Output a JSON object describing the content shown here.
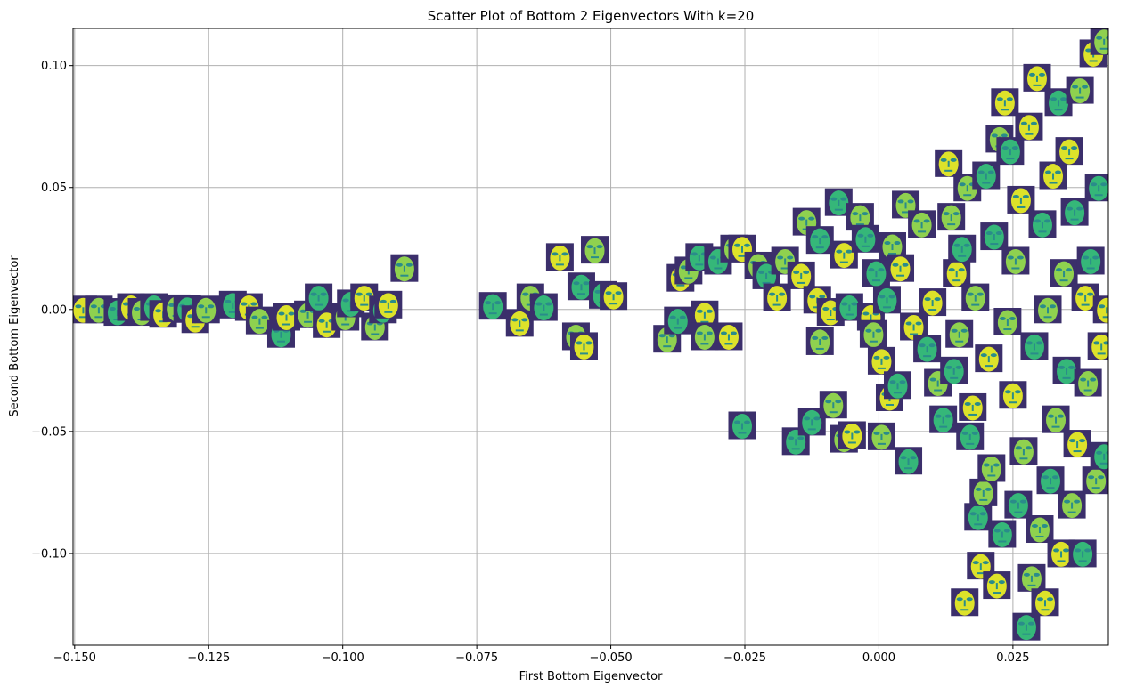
{
  "chart_data": {
    "type": "scatter",
    "title": "Scatter Plot of Bottom 2 Eigenvectors With k=20",
    "xlabel": "First Bottom Eigenvector",
    "ylabel": "Second Bottom Eigenvector",
    "xlim": [
      -0.1503,
      0.0428
    ],
    "ylim": [
      -0.1376,
      0.1152
    ],
    "xticks": [
      -0.15,
      -0.125,
      -0.1,
      -0.075,
      -0.05,
      -0.025,
      0.0,
      0.025
    ],
    "xtick_labels": [
      "−0.150",
      "−0.125",
      "−0.100",
      "−0.075",
      "−0.050",
      "−0.025",
      "0.000",
      "0.025"
    ],
    "yticks": [
      0.1,
      0.05,
      0.0,
      -0.05,
      -0.1
    ],
    "ytick_labels": [
      "0.10",
      "0.05",
      "0.00",
      "−0.05",
      "−0.10"
    ],
    "grid": true,
    "marker": "face-thumbnail",
    "colors": {
      "grid": "#b0b0b0",
      "axes": "#000000",
      "face_low": "#3b2f6b",
      "face_mid": "#2a8c8a",
      "face_high": "#dde22a"
    },
    "points": [
      {
        "x": -0.1484,
        "y": 0.0
      },
      {
        "x": -0.1455,
        "y": 0.0
      },
      {
        "x": -0.142,
        "y": -0.001
      },
      {
        "x": -0.1395,
        "y": 0.001
      },
      {
        "x": -0.1375,
        "y": -0.001
      },
      {
        "x": -0.1352,
        "y": 0.001
      },
      {
        "x": -0.1335,
        "y": -0.0018
      },
      {
        "x": -0.131,
        "y": 0.0005
      },
      {
        "x": -0.129,
        "y": 0.0002
      },
      {
        "x": -0.1275,
        "y": -0.004
      },
      {
        "x": -0.1255,
        "y": 0.0
      },
      {
        "x": -0.1205,
        "y": 0.002
      },
      {
        "x": -0.1175,
        "y": 0.001
      },
      {
        "x": -0.1155,
        "y": -0.0045
      },
      {
        "x": -0.1115,
        "y": -0.01
      },
      {
        "x": -0.1105,
        "y": -0.003
      },
      {
        "x": -0.1065,
        "y": -0.002
      },
      {
        "x": -0.1045,
        "y": 0.005
      },
      {
        "x": -0.103,
        "y": -0.006
      },
      {
        "x": -0.0995,
        "y": -0.003
      },
      {
        "x": -0.0985,
        "y": 0.0025
      },
      {
        "x": -0.096,
        "y": 0.005
      },
      {
        "x": -0.094,
        "y": -0.007
      },
      {
        "x": -0.0925,
        "y": 0.0
      },
      {
        "x": -0.0915,
        "y": 0.002
      },
      {
        "x": -0.0885,
        "y": 0.017
      },
      {
        "x": -0.072,
        "y": 0.0015
      },
      {
        "x": -0.067,
        "y": -0.0055
      },
      {
        "x": -0.065,
        "y": 0.005
      },
      {
        "x": -0.0625,
        "y": 0.001
      },
      {
        "x": -0.0595,
        "y": 0.0215
      },
      {
        "x": -0.0565,
        "y": -0.011
      },
      {
        "x": -0.0555,
        "y": 0.0095
      },
      {
        "x": -0.055,
        "y": -0.015
      },
      {
        "x": -0.053,
        "y": 0.0245
      },
      {
        "x": -0.0515,
        "y": 0.006
      },
      {
        "x": -0.0495,
        "y": 0.0055
      },
      {
        "x": -0.0395,
        "y": -0.012
      },
      {
        "x": -0.0375,
        "y": -0.0045
      },
      {
        "x": -0.037,
        "y": 0.013
      },
      {
        "x": -0.0355,
        "y": 0.016
      },
      {
        "x": -0.0335,
        "y": 0.0215
      },
      {
        "x": -0.0325,
        "y": -0.002
      },
      {
        "x": -0.0325,
        "y": -0.011
      },
      {
        "x": -0.03,
        "y": 0.02
      },
      {
        "x": -0.028,
        "y": -0.011
      },
      {
        "x": -0.027,
        "y": 0.025
      },
      {
        "x": -0.0255,
        "y": -0.0475
      },
      {
        "x": -0.0255,
        "y": 0.025
      },
      {
        "x": -0.0225,
        "y": 0.018
      },
      {
        "x": -0.021,
        "y": 0.014
      },
      {
        "x": -0.019,
        "y": 0.005
      },
      {
        "x": -0.0175,
        "y": 0.02
      },
      {
        "x": -0.0155,
        "y": -0.054
      },
      {
        "x": -0.0145,
        "y": 0.014
      },
      {
        "x": -0.0135,
        "y": 0.036
      },
      {
        "x": -0.0125,
        "y": -0.046
      },
      {
        "x": -0.0115,
        "y": 0.004
      },
      {
        "x": -0.011,
        "y": -0.013
      },
      {
        "x": -0.011,
        "y": 0.0285
      },
      {
        "x": -0.009,
        "y": -0.001
      },
      {
        "x": -0.0085,
        "y": -0.039
      },
      {
        "x": -0.0075,
        "y": 0.044
      },
      {
        "x": -0.0065,
        "y": 0.0225
      },
      {
        "x": -0.0065,
        "y": -0.053
      },
      {
        "x": -0.0055,
        "y": 0.001
      },
      {
        "x": -0.005,
        "y": -0.0515
      },
      {
        "x": -0.0035,
        "y": 0.038
      },
      {
        "x": -0.0025,
        "y": 0.029
      },
      {
        "x": -0.0015,
        "y": -0.003
      },
      {
        "x": -0.001,
        "y": -0.01
      },
      {
        "x": -0.0005,
        "y": 0.015
      },
      {
        "x": 0.0005,
        "y": -0.021
      },
      {
        "x": 0.0005,
        "y": -0.052
      },
      {
        "x": 0.0015,
        "y": 0.004
      },
      {
        "x": 0.002,
        "y": -0.036
      },
      {
        "x": 0.0025,
        "y": 0.026
      },
      {
        "x": 0.0035,
        "y": -0.031
      },
      {
        "x": 0.004,
        "y": 0.017
      },
      {
        "x": 0.005,
        "y": 0.043
      },
      {
        "x": 0.0055,
        "y": -0.062
      },
      {
        "x": 0.0065,
        "y": -0.007
      },
      {
        "x": 0.008,
        "y": 0.035
      },
      {
        "x": 0.009,
        "y": -0.016
      },
      {
        "x": 0.01,
        "y": 0.003
      },
      {
        "x": 0.011,
        "y": -0.03
      },
      {
        "x": 0.012,
        "y": -0.045
      },
      {
        "x": 0.013,
        "y": 0.06
      },
      {
        "x": 0.0135,
        "y": 0.038
      },
      {
        "x": 0.014,
        "y": -0.025
      },
      {
        "x": 0.0145,
        "y": 0.015
      },
      {
        "x": 0.015,
        "y": -0.01
      },
      {
        "x": 0.0155,
        "y": 0.025
      },
      {
        "x": 0.016,
        "y": -0.12
      },
      {
        "x": 0.0165,
        "y": 0.05
      },
      {
        "x": 0.017,
        "y": -0.052
      },
      {
        "x": 0.0175,
        "y": -0.04
      },
      {
        "x": 0.018,
        "y": 0.005
      },
      {
        "x": 0.0185,
        "y": -0.085
      },
      {
        "x": 0.019,
        "y": -0.105
      },
      {
        "x": 0.0195,
        "y": -0.075
      },
      {
        "x": 0.02,
        "y": 0.055
      },
      {
        "x": 0.0205,
        "y": -0.02
      },
      {
        "x": 0.021,
        "y": -0.065
      },
      {
        "x": 0.0215,
        "y": 0.03
      },
      {
        "x": 0.022,
        "y": -0.113
      },
      {
        "x": 0.0225,
        "y": 0.07
      },
      {
        "x": 0.023,
        "y": -0.092
      },
      {
        "x": 0.0235,
        "y": 0.085
      },
      {
        "x": 0.024,
        "y": -0.005
      },
      {
        "x": 0.0245,
        "y": 0.065
      },
      {
        "x": 0.025,
        "y": -0.035
      },
      {
        "x": 0.0255,
        "y": 0.02
      },
      {
        "x": 0.026,
        "y": -0.08
      },
      {
        "x": 0.0265,
        "y": 0.045
      },
      {
        "x": 0.027,
        "y": -0.058
      },
      {
        "x": 0.0275,
        "y": -0.13
      },
      {
        "x": 0.028,
        "y": 0.075
      },
      {
        "x": 0.0285,
        "y": -0.11
      },
      {
        "x": 0.029,
        "y": -0.015
      },
      {
        "x": 0.0295,
        "y": 0.095
      },
      {
        "x": 0.03,
        "y": -0.09
      },
      {
        "x": 0.0305,
        "y": 0.035
      },
      {
        "x": 0.031,
        "y": -0.12
      },
      {
        "x": 0.0315,
        "y": 0.0
      },
      {
        "x": 0.032,
        "y": -0.07
      },
      {
        "x": 0.0325,
        "y": 0.055
      },
      {
        "x": 0.033,
        "y": -0.045
      },
      {
        "x": 0.0335,
        "y": 0.085
      },
      {
        "x": 0.034,
        "y": -0.1
      },
      {
        "x": 0.0345,
        "y": 0.015
      },
      {
        "x": 0.035,
        "y": -0.025
      },
      {
        "x": 0.0355,
        "y": 0.065
      },
      {
        "x": 0.036,
        "y": -0.08
      },
      {
        "x": 0.0365,
        "y": 0.04
      },
      {
        "x": 0.037,
        "y": -0.055
      },
      {
        "x": 0.0375,
        "y": 0.09
      },
      {
        "x": 0.038,
        "y": -0.1
      },
      {
        "x": 0.0385,
        "y": 0.005
      },
      {
        "x": 0.039,
        "y": -0.03
      },
      {
        "x": 0.0395,
        "y": 0.02
      },
      {
        "x": 0.04,
        "y": 0.105
      },
      {
        "x": 0.0405,
        "y": -0.07
      },
      {
        "x": 0.041,
        "y": 0.05
      },
      {
        "x": 0.0415,
        "y": -0.015
      },
      {
        "x": 0.042,
        "y": 0.11
      },
      {
        "x": 0.042,
        "y": -0.06
      },
      {
        "x": 0.0425,
        "y": 0.0
      }
    ]
  }
}
